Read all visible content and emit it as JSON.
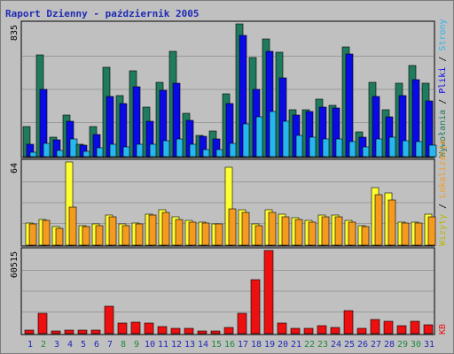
{
  "title": "Raport Dzienny -  październik 2005",
  "colors": {
    "frame": "#7b7b7b",
    "plot_bg": "#c0c0c0",
    "border": "#000000",
    "wywolania": "#1f7a5e",
    "pliki": "#0a0ae6",
    "strony": "#27b7ee",
    "lokalizacje": "#f49b1f",
    "wizyty": "#ffff30",
    "kb": "#ee1010",
    "weekend_day": "#1e8a3c",
    "weekday_day": "#1e2ab4",
    "title": "#1e2ab4"
  },
  "legend": {
    "top_right": [
      {
        "text": "Wywołania",
        "color": "#1f7a5e"
      },
      {
        "text": "Pliki",
        "color": "#0a0ae6"
      },
      {
        "text": "Strony",
        "color": "#27b7ee"
      }
    ],
    "mid_right": [
      {
        "text": "Wizyty",
        "color": "#b8b800"
      },
      {
        "text": "Lokalizacje",
        "color": "#f49b1f"
      }
    ],
    "bottom_right": [
      {
        "text": "KB",
        "color": "#ee1010"
      }
    ]
  },
  "chart_data": [
    {
      "type": "bar",
      "panel": "hits",
      "peak_label": "835",
      "ylim": [
        0,
        835
      ],
      "categories": [
        "1",
        "2",
        "3",
        "4",
        "5",
        "6",
        "7",
        "8",
        "9",
        "10",
        "11",
        "12",
        "13",
        "14",
        "15",
        "16",
        "17",
        "18",
        "19",
        "20",
        "21",
        "22",
        "23",
        "24",
        "25",
        "26",
        "27",
        "28",
        "29",
        "30",
        "31"
      ],
      "series": [
        {
          "name": "Wywołania",
          "values": [
            190,
            640,
            120,
            260,
            80,
            190,
            560,
            385,
            540,
            310,
            470,
            660,
            270,
            135,
            160,
            395,
            835,
            625,
            740,
            655,
            295,
            295,
            360,
            325,
            690,
            155,
            470,
            295,
            460,
            575,
            460
          ]
        },
        {
          "name": "Pliki",
          "values": [
            80,
            425,
            105,
            220,
            70,
            140,
            380,
            335,
            440,
            220,
            420,
            460,
            230,
            130,
            110,
            335,
            765,
            425,
            665,
            495,
            260,
            285,
            310,
            305,
            645,
            120,
            380,
            250,
            385,
            485,
            350
          ]
        },
        {
          "name": "Strony",
          "values": [
            30,
            85,
            40,
            110,
            35,
            55,
            80,
            60,
            80,
            80,
            100,
            110,
            80,
            45,
            45,
            85,
            205,
            250,
            285,
            220,
            135,
            125,
            110,
            110,
            95,
            60,
            110,
            120,
            100,
            95,
            70
          ]
        }
      ]
    },
    {
      "type": "bar",
      "panel": "visits",
      "peak_label": "64",
      "ylim": [
        0,
        64
      ],
      "categories": [
        "1",
        "2",
        "3",
        "4",
        "5",
        "6",
        "7",
        "8",
        "9",
        "10",
        "11",
        "12",
        "13",
        "14",
        "15",
        "16",
        "17",
        "18",
        "19",
        "20",
        "21",
        "22",
        "23",
        "24",
        "25",
        "26",
        "27",
        "28",
        "29",
        "30",
        "31"
      ],
      "series": [
        {
          "name": "Wizyty",
          "values": [
            17,
            20,
            14,
            64,
            15,
            16,
            23,
            16,
            17,
            24,
            27,
            22,
            19,
            18,
            16,
            60,
            27,
            16,
            27,
            24,
            21,
            19,
            23,
            23,
            19,
            15,
            44,
            40,
            18,
            18,
            24
          ]
        },
        {
          "name": "Lokalizacje",
          "values": [
            16,
            19,
            13,
            29,
            14,
            15,
            22,
            15,
            16,
            23,
            25,
            20,
            18,
            17,
            16,
            28,
            25,
            15,
            25,
            22,
            20,
            18,
            22,
            22,
            18,
            14,
            39,
            35,
            17,
            17,
            22
          ]
        }
      ]
    },
    {
      "type": "bar",
      "panel": "kb",
      "peak_label": "60515",
      "ylim": [
        0,
        60515
      ],
      "categories": [
        "1",
        "2",
        "3",
        "4",
        "5",
        "6",
        "7",
        "8",
        "9",
        "10",
        "11",
        "12",
        "13",
        "14",
        "15",
        "16",
        "17",
        "18",
        "19",
        "20",
        "21",
        "22",
        "23",
        "24",
        "25",
        "26",
        "27",
        "28",
        "29",
        "30",
        "31"
      ],
      "series": [
        {
          "name": "KB",
          "values": [
            2800,
            15000,
            1800,
            2800,
            2500,
            2800,
            20000,
            7500,
            8500,
            7500,
            5000,
            3800,
            3800,
            2200,
            2200,
            4500,
            15000,
            39000,
            60515,
            7500,
            4000,
            4000,
            5500,
            4200,
            17000,
            4000,
            10000,
            9000,
            5500,
            9000,
            6500
          ]
        }
      ]
    }
  ],
  "weekend_days": [
    "2",
    "8",
    "9",
    "15",
    "16",
    "22",
    "23",
    "29",
    "30"
  ]
}
